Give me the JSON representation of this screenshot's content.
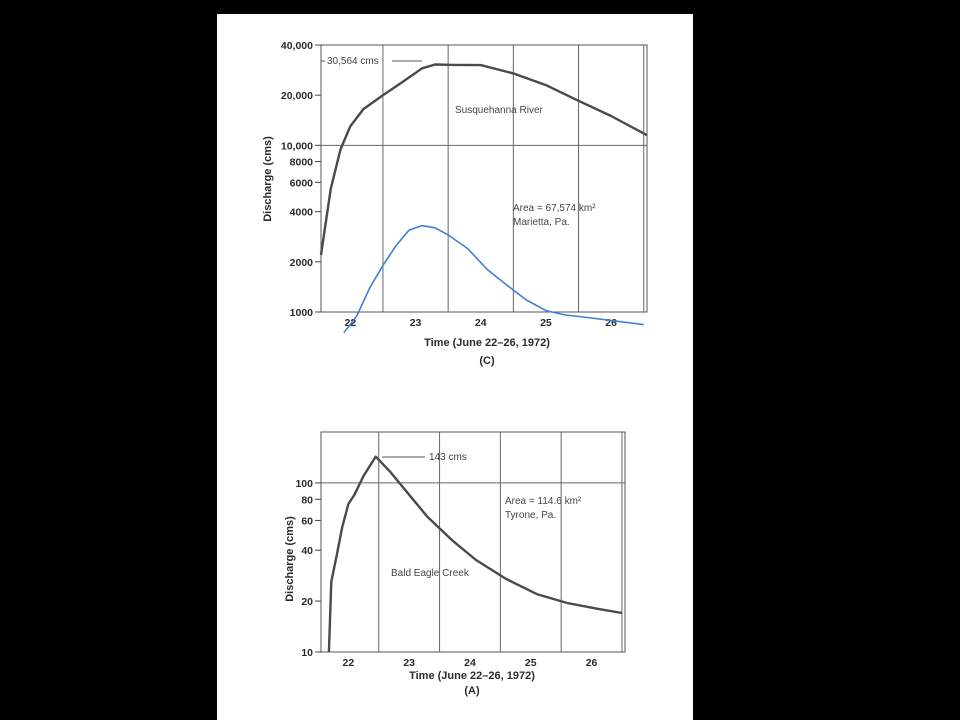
{
  "chart_data": [
    {
      "type": "line",
      "panel_label": "(C)",
      "series_label": "Susquehanna River",
      "xlabel": "Time (June 22–26, 1972)",
      "ylabel": "Discharge (cms)",
      "yscale": "log",
      "ylim": [
        1000,
        40000
      ],
      "xlim": [
        21.55,
        26.55
      ],
      "x_ticks": [
        "22",
        "23",
        "24",
        "25",
        "26"
      ],
      "y_ticks": [
        "40,000",
        "20,000",
        "10,000",
        "8000",
        "6000",
        "4000",
        "2000",
        "1000"
      ],
      "annotations": [
        "30,564 cms",
        "Area = 67,574 km²",
        "Marietta, Pa."
      ],
      "series": [
        {
          "color": "#4a4a4a",
          "x": [
            21.55,
            21.7,
            21.85,
            22.0,
            22.2,
            22.5,
            22.8,
            23.1,
            23.3,
            23.6,
            24.0,
            24.5,
            25.0,
            25.5,
            26.0,
            26.55
          ],
          "y": [
            2200,
            5500,
            9500,
            13000,
            16500,
            20000,
            24000,
            29000,
            30564,
            30400,
            30300,
            27000,
            23000,
            18500,
            15000,
            11500
          ]
        },
        {
          "color": "#3d7fd6",
          "x": [
            21.9,
            22.1,
            22.3,
            22.5,
            22.7,
            22.9,
            23.1,
            23.3,
            23.5,
            23.8,
            24.1,
            24.4,
            24.7,
            25.0,
            25.3,
            25.7,
            26.1,
            26.5
          ],
          "y": [
            750,
            950,
            1400,
            1900,
            2500,
            3100,
            3300,
            3200,
            2900,
            2400,
            1800,
            1450,
            1180,
            1020,
            960,
            920,
            880,
            840
          ]
        }
      ]
    },
    {
      "type": "line",
      "panel_label": "(A)",
      "series_label": "Bald Eagle Creek",
      "xlabel": "Time (June 22–26, 1972)",
      "ylabel": "Discharge (cms)",
      "yscale": "log",
      "ylim": [
        10,
        200
      ],
      "xlim": [
        21.55,
        26.55
      ],
      "x_ticks": [
        "22",
        "23",
        "24",
        "25",
        "26"
      ],
      "y_ticks": [
        "100",
        "80",
        "60",
        "40",
        "20",
        "10"
      ],
      "annotations": [
        "143 cms",
        "Area = 114.6 km²",
        "Tyrone, Pa."
      ],
      "series": [
        {
          "color": "#4a4a4a",
          "x": [
            21.68,
            21.72,
            21.8,
            21.9,
            22.0,
            22.1,
            22.25,
            22.45,
            22.7,
            23.0,
            23.3,
            23.7,
            24.1,
            24.6,
            25.1,
            25.6,
            26.1,
            26.5
          ],
          "y": [
            10,
            26,
            36,
            55,
            75,
            85,
            110,
            143,
            115,
            85,
            63,
            46,
            35,
            27,
            22,
            19.5,
            18,
            17
          ]
        }
      ]
    }
  ]
}
